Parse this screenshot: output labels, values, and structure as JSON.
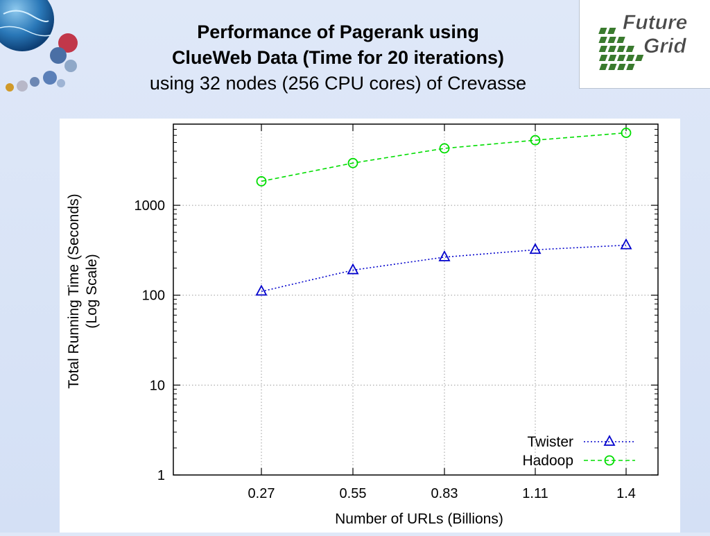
{
  "slide": {
    "title_line1": "Performance of Pagerank using",
    "title_line2": "ClueWeb Data (Time for 20 iterations)",
    "subtitle": "using 32 nodes (256 CPU cores) of Crevasse"
  },
  "logo": {
    "line1": "Future",
    "line2": "Grid"
  },
  "chart_data": {
    "type": "line",
    "title": "",
    "xlabel": "Number of URLs (Billions)",
    "ylabel_line1": "Total Running Time (Seconds)",
    "ylabel_line2": "(Log Scale)",
    "y_scale": "log",
    "ylim": [
      1,
      8000
    ],
    "categories": [
      "0.27",
      "0.55",
      "0.83",
      "1.11",
      "1.4"
    ],
    "y_ticks": [
      {
        "value": 1,
        "label": "1"
      },
      {
        "value": 10,
        "label": "10"
      },
      {
        "value": 100,
        "label": "100"
      },
      {
        "value": 1000,
        "label": "1000"
      }
    ],
    "grid": true,
    "legend_position": "bottom-right",
    "series": [
      {
        "name": "Twister",
        "values": [
          110,
          190,
          265,
          320,
          360
        ],
        "color": "#0000cc",
        "marker": "triangle",
        "line_style": "dotted"
      },
      {
        "name": "Hadoop",
        "values": [
          1850,
          2950,
          4300,
          5300,
          6400
        ],
        "color": "#00dd00",
        "marker": "circle",
        "line_style": "dashed"
      }
    ]
  }
}
